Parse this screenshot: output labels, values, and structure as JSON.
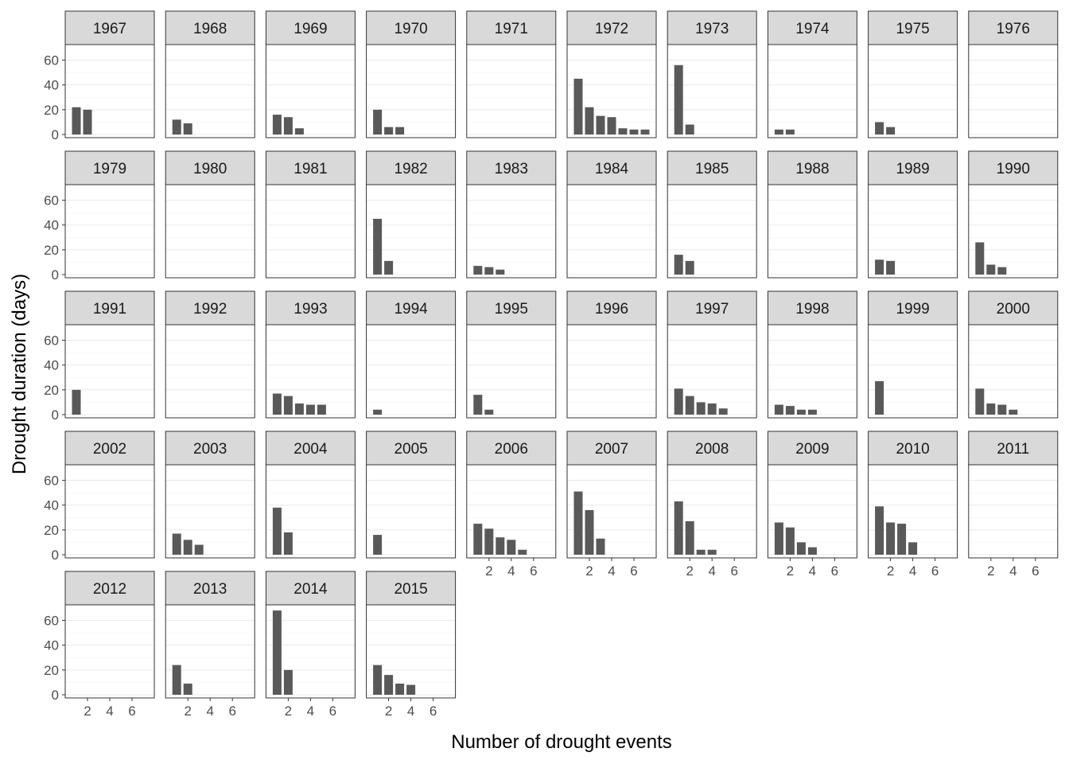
{
  "chart_data": {
    "type": "bar",
    "xlabel": "Number of drought events",
    "ylabel": "Drought duration (days)",
    "xlim": [
      0,
      8
    ],
    "ylim": [
      0,
      70
    ],
    "x_ticks": [
      2,
      4,
      6
    ],
    "y_ticks": [
      0,
      20,
      40,
      60
    ],
    "bar_color": "#595959",
    "strip_fill": "#d9d9d9",
    "grid": true,
    "ncol": 10,
    "panels": [
      {
        "label": "1967",
        "values": [
          22,
          20
        ]
      },
      {
        "label": "1968",
        "values": [
          12,
          9
        ]
      },
      {
        "label": "1969",
        "values": [
          16,
          14,
          5
        ]
      },
      {
        "label": "1970",
        "values": [
          20,
          6,
          6
        ]
      },
      {
        "label": "1971",
        "values": []
      },
      {
        "label": "1972",
        "values": [
          45,
          22,
          15,
          14,
          5,
          4,
          4
        ]
      },
      {
        "label": "1973",
        "values": [
          56,
          8
        ]
      },
      {
        "label": "1974",
        "values": [
          4,
          4
        ]
      },
      {
        "label": "1975",
        "values": [
          10,
          6
        ]
      },
      {
        "label": "1976",
        "values": []
      },
      {
        "label": "1979",
        "values": []
      },
      {
        "label": "1980",
        "values": []
      },
      {
        "label": "1981",
        "values": []
      },
      {
        "label": "1982",
        "values": [
          45,
          11
        ]
      },
      {
        "label": "1983",
        "values": [
          7,
          6,
          4
        ]
      },
      {
        "label": "1984",
        "values": []
      },
      {
        "label": "1985",
        "values": [
          16,
          11
        ]
      },
      {
        "label": "1988",
        "values": []
      },
      {
        "label": "1989",
        "values": [
          12,
          11
        ]
      },
      {
        "label": "1990",
        "values": [
          26,
          8,
          6
        ]
      },
      {
        "label": "1991",
        "values": [
          20
        ]
      },
      {
        "label": "1992",
        "values": []
      },
      {
        "label": "1993",
        "values": [
          17,
          15,
          9,
          8,
          8
        ]
      },
      {
        "label": "1994",
        "values": [
          4
        ]
      },
      {
        "label": "1995",
        "values": [
          16,
          4
        ]
      },
      {
        "label": "1996",
        "values": []
      },
      {
        "label": "1997",
        "values": [
          21,
          15,
          10,
          9,
          5
        ]
      },
      {
        "label": "1998",
        "values": [
          8,
          7,
          4,
          4
        ]
      },
      {
        "label": "1999",
        "values": [
          27
        ]
      },
      {
        "label": "2000",
        "values": [
          21,
          9,
          8,
          4
        ]
      },
      {
        "label": "2002",
        "values": []
      },
      {
        "label": "2003",
        "values": [
          17,
          12,
          8
        ]
      },
      {
        "label": "2004",
        "values": [
          38,
          18
        ]
      },
      {
        "label": "2005",
        "values": [
          16
        ]
      },
      {
        "label": "2006",
        "values": [
          25,
          21,
          14,
          12,
          4
        ]
      },
      {
        "label": "2007",
        "values": [
          51,
          36,
          13
        ]
      },
      {
        "label": "2008",
        "values": [
          43,
          27,
          4,
          4
        ]
      },
      {
        "label": "2009",
        "values": [
          26,
          22,
          10,
          6
        ]
      },
      {
        "label": "2010",
        "values": [
          39,
          26,
          25,
          10
        ]
      },
      {
        "label": "2011",
        "values": []
      },
      {
        "label": "2012",
        "values": []
      },
      {
        "label": "2013",
        "values": [
          24,
          9
        ]
      },
      {
        "label": "2014",
        "values": [
          68,
          20
        ]
      },
      {
        "label": "2015",
        "values": [
          24,
          16,
          9,
          8
        ]
      }
    ]
  }
}
